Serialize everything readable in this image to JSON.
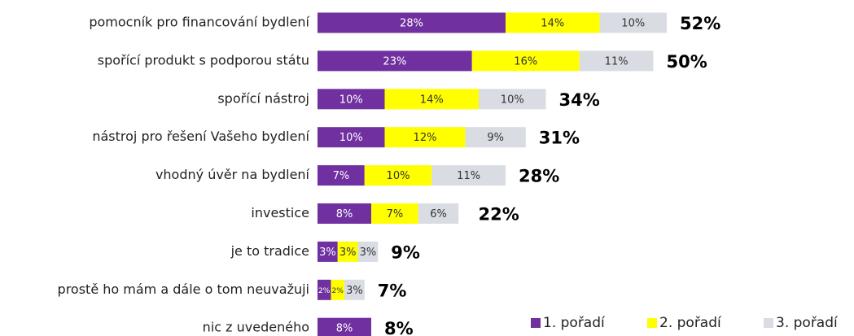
{
  "chart_data": {
    "type": "stacked-bar-horizontal",
    "categories": [
      "pomocník pro financování bydlení",
      "spořící produkt s podporou státu",
      "spořící nástroj",
      "nástroj pro řešení Vašeho bydlení",
      "vhodný úvěr na bydlení",
      "investice",
      "je to tradice",
      "prostě ho mám a dále o tom neuvažuji",
      "nic z uvedeného"
    ],
    "series": [
      {
        "name": "1. pořadí",
        "color": "#7030a0",
        "label_color": "#ffffff",
        "values": [
          28,
          23,
          10,
          10,
          7,
          8,
          3,
          2,
          8
        ],
        "value_labels": [
          "28%",
          "23%",
          "10%",
          "10%",
          "7%",
          "8%",
          "3%",
          "2%",
          "8%"
        ]
      },
      {
        "name": "2. pořadí",
        "color": "#ffff00",
        "label_color": "#333333",
        "values": [
          14,
          16,
          14,
          12,
          10,
          7,
          3,
          2,
          null
        ],
        "value_labels": [
          "14%",
          "16%",
          "14%",
          "12%",
          "10%",
          "7%",
          "3%",
          "2%",
          null
        ]
      },
      {
        "name": "3. pořadí",
        "color": "#d9dce3",
        "label_color": "#333333",
        "values": [
          10,
          11,
          10,
          9,
          11,
          6,
          3,
          3,
          null
        ],
        "value_labels": [
          "10%",
          "11%",
          "10%",
          "9%",
          "11%",
          "6%",
          "3%",
          "3%",
          null
        ]
      }
    ],
    "totals": [
      52,
      50,
      34,
      31,
      28,
      22,
      9,
      7,
      8
    ],
    "total_labels": [
      "52%",
      "50%",
      "34%",
      "31%",
      "28%",
      "22%",
      "9%",
      "7%",
      "8%"
    ],
    "legend": "bottom-right"
  }
}
